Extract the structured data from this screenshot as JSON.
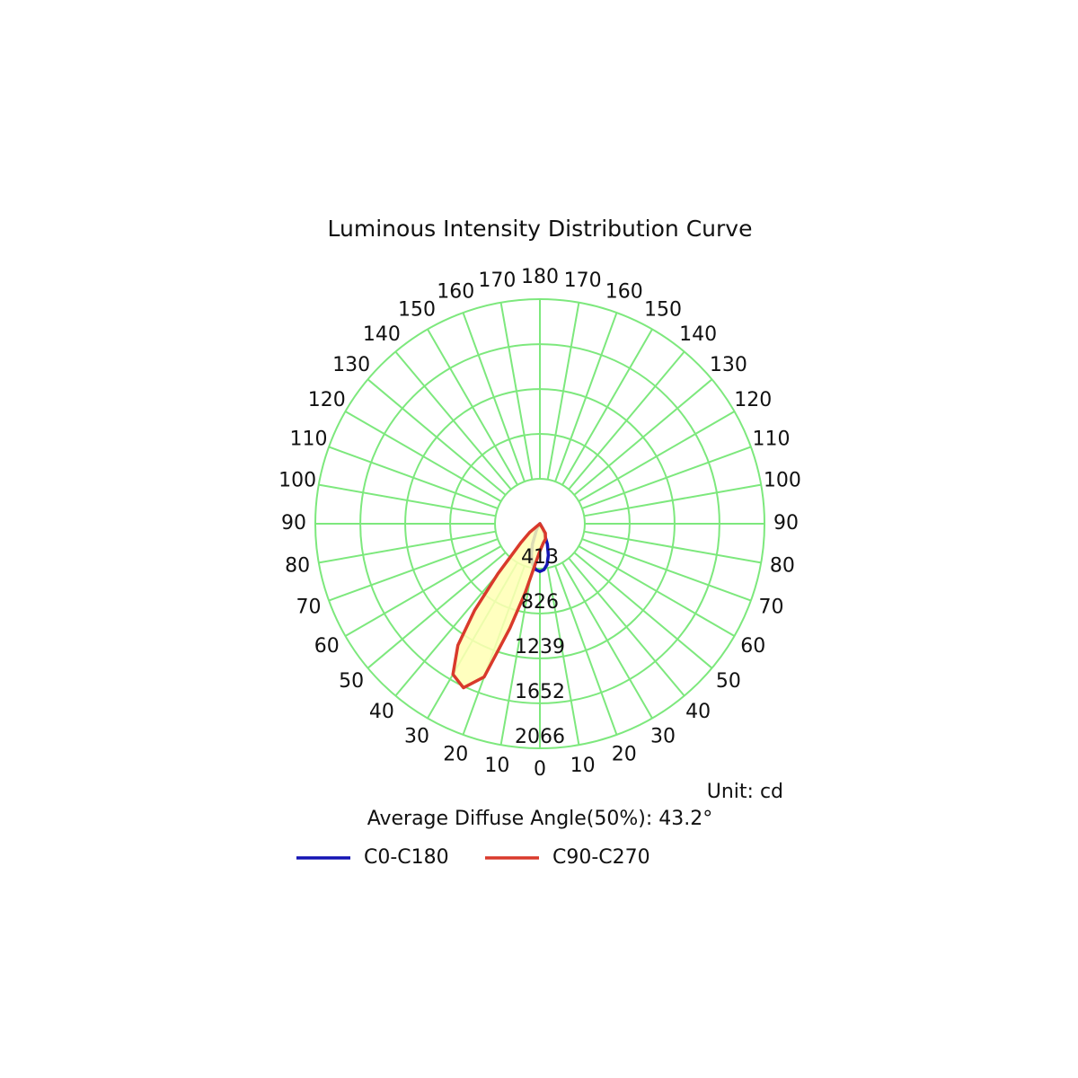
{
  "chart_data": {
    "type": "polar",
    "title": "Luminous Intensity Distribution Curve",
    "unit_label": "Unit: cd",
    "annotation": "Average Diffuse Angle(50%): 43.2°",
    "rlim": [
      0,
      2066
    ],
    "rticks": [
      413,
      826,
      1239,
      1652,
      2066
    ],
    "angle_ticks": [
      0,
      10,
      20,
      30,
      40,
      50,
      60,
      70,
      80,
      90,
      100,
      110,
      120,
      130,
      140,
      150,
      160,
      170,
      180
    ],
    "grid": true,
    "grid_color": "#7de87d",
    "series": [
      {
        "name": "C0-C180",
        "color": "#1414b4",
        "fill": null,
        "x": [
          -90,
          -30,
          -20,
          -15,
          -10,
          -5,
          0,
          5,
          10,
          15,
          20,
          30,
          90
        ],
        "values": [
          0,
          60,
          200,
          300,
          380,
          425,
          440,
          425,
          380,
          300,
          200,
          60,
          0
        ]
      },
      {
        "name": "C90-C270",
        "color": "#d9392b",
        "fill": "#ffffb4",
        "x": [
          -90,
          -50,
          -45,
          -40,
          -37,
          -34,
          -30,
          -25,
          -20,
          -16,
          -12,
          -7,
          0,
          10,
          20,
          30,
          90
        ],
        "values": [
          0,
          120,
          250,
          600,
          1000,
          1350,
          1600,
          1665,
          1500,
          1000,
          650,
          390,
          250,
          180,
          150,
          100,
          0
        ]
      }
    ]
  }
}
